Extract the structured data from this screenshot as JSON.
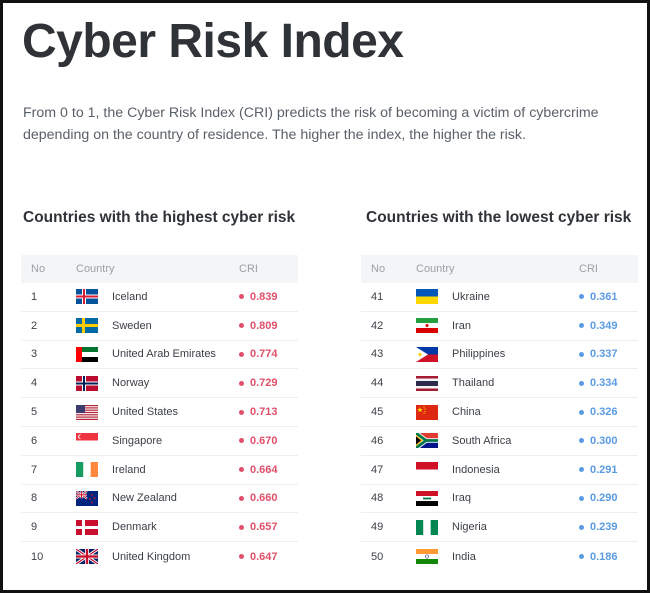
{
  "title": "Cyber Risk Index",
  "intro": "From 0 to 1, the Cyber Risk Index (CRI) predicts the risk of becoming a victim of cybercrime depending on the country of residence. The higher the index, the higher the risk.",
  "chart_data": [
    {
      "type": "table",
      "title": "Countries with the highest cyber risk",
      "columns": [
        "No",
        "Country",
        "CRI"
      ],
      "rows": [
        {
          "no": "1",
          "country": "Iceland",
          "flag": "iceland-flag",
          "cri": "0.839"
        },
        {
          "no": "2",
          "country": "Sweden",
          "flag": "sweden-flag",
          "cri": "0.809"
        },
        {
          "no": "3",
          "country": "United Arab Emirates",
          "flag": "uae-flag",
          "cri": "0.774"
        },
        {
          "no": "4",
          "country": "Norway",
          "flag": "norway-flag",
          "cri": "0.729"
        },
        {
          "no": "5",
          "country": "United States",
          "flag": "usa-flag",
          "cri": "0.713"
        },
        {
          "no": "6",
          "country": "Singapore",
          "flag": "singapore-flag",
          "cri": "0.670"
        },
        {
          "no": "7",
          "country": "Ireland",
          "flag": "ireland-flag",
          "cri": "0.664"
        },
        {
          "no": "8",
          "country": "New Zealand",
          "flag": "new-zealand-flag",
          "cri": "0.660"
        },
        {
          "no": "9",
          "country": "Denmark",
          "flag": "denmark-flag",
          "cri": "0.657"
        },
        {
          "no": "10",
          "country": "United Kingdom",
          "flag": "uk-flag",
          "cri": "0.647"
        }
      ],
      "accent_color": "#e0506a"
    },
    {
      "type": "table",
      "title": "Countries with the lowest cyber risk",
      "columns": [
        "No",
        "Country",
        "CRI"
      ],
      "rows": [
        {
          "no": "41",
          "country": "Ukraine",
          "flag": "ukraine-flag",
          "cri": "0.361"
        },
        {
          "no": "42",
          "country": "Iran",
          "flag": "iran-flag",
          "cri": "0.349"
        },
        {
          "no": "43",
          "country": "Philippines",
          "flag": "philippines-flag",
          "cri": "0.337"
        },
        {
          "no": "44",
          "country": "Thailand",
          "flag": "thailand-flag",
          "cri": "0.334"
        },
        {
          "no": "45",
          "country": "China",
          "flag": "china-flag",
          "cri": "0.326"
        },
        {
          "no": "46",
          "country": "South Africa",
          "flag": "south-africa-flag",
          "cri": "0.300"
        },
        {
          "no": "47",
          "country": "Indonesia",
          "flag": "indonesia-flag",
          "cri": "0.291"
        },
        {
          "no": "48",
          "country": "Iraq",
          "flag": "iraq-flag",
          "cri": "0.290"
        },
        {
          "no": "49",
          "country": "Nigeria",
          "flag": "nigeria-flag",
          "cri": "0.239"
        },
        {
          "no": "50",
          "country": "India",
          "flag": "india-flag",
          "cri": "0.186"
        }
      ],
      "accent_color": "#5b9be3"
    }
  ]
}
